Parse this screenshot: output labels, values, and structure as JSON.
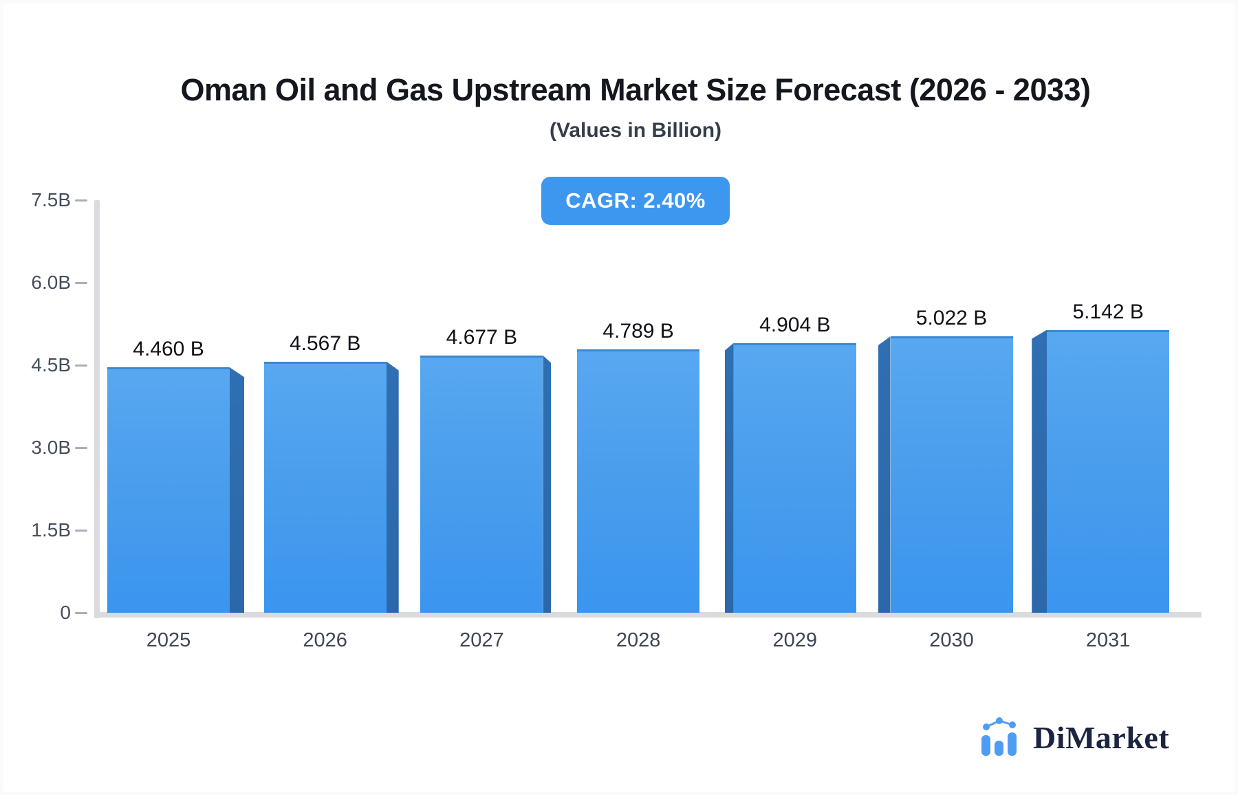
{
  "page": {
    "title": "Oman Oil and Gas Upstream Market Size Forecast (2026 - 2033)",
    "subtitle": "(Values in Billion)",
    "cagr_badge": "CAGR: 2.40%"
  },
  "chart_data": {
    "type": "bar",
    "style": "3d-perspective-bars",
    "title": "Oman Oil and Gas Upstream Market Size Forecast (2026 - 2033)",
    "subtitle": "(Values in Billion)",
    "unit": "Billion",
    "cagr": "2.40%",
    "categories": [
      "2025",
      "2026",
      "2027",
      "2028",
      "2029",
      "2030",
      "2031"
    ],
    "values": [
      4.46,
      4.567,
      4.677,
      4.789,
      4.904,
      5.022,
      5.142
    ],
    "value_labels": [
      "4.460 B",
      "4.567 B",
      "4.677 B",
      "4.789 B",
      "4.904 B",
      "5.022 B",
      "5.142 B"
    ],
    "xlabel": "",
    "ylabel": "",
    "ylim": [
      0,
      7.5
    ],
    "y_tick_values": [
      0,
      1.5,
      3.0,
      4.5,
      6.0,
      7.5
    ],
    "y_tick_labels": [
      "0",
      "1.5B",
      "3.0B",
      "4.5B",
      "6.0B",
      "7.5B"
    ],
    "grid": false,
    "legend": false
  },
  "colors": {
    "bar_face": "#4A9EEC",
    "bar_face_light": "#58A8F1",
    "bar_side": "#2F6FB2",
    "badge_bg": "#3E97EF",
    "badge_text": "#FFFFFF",
    "axis_line": "#D9DBDF",
    "tick_dash": "#A9AFB8",
    "axis_label": "#454E5C",
    "title_text": "#14171D",
    "subtitle_text": "#353D4A",
    "value_label": "#0E1116",
    "logo_text": "#1B2440",
    "logo_icon": "#4F9CF5"
  },
  "logo": {
    "text": "DiMarket",
    "icon": "bar-chart-trend-icon"
  }
}
